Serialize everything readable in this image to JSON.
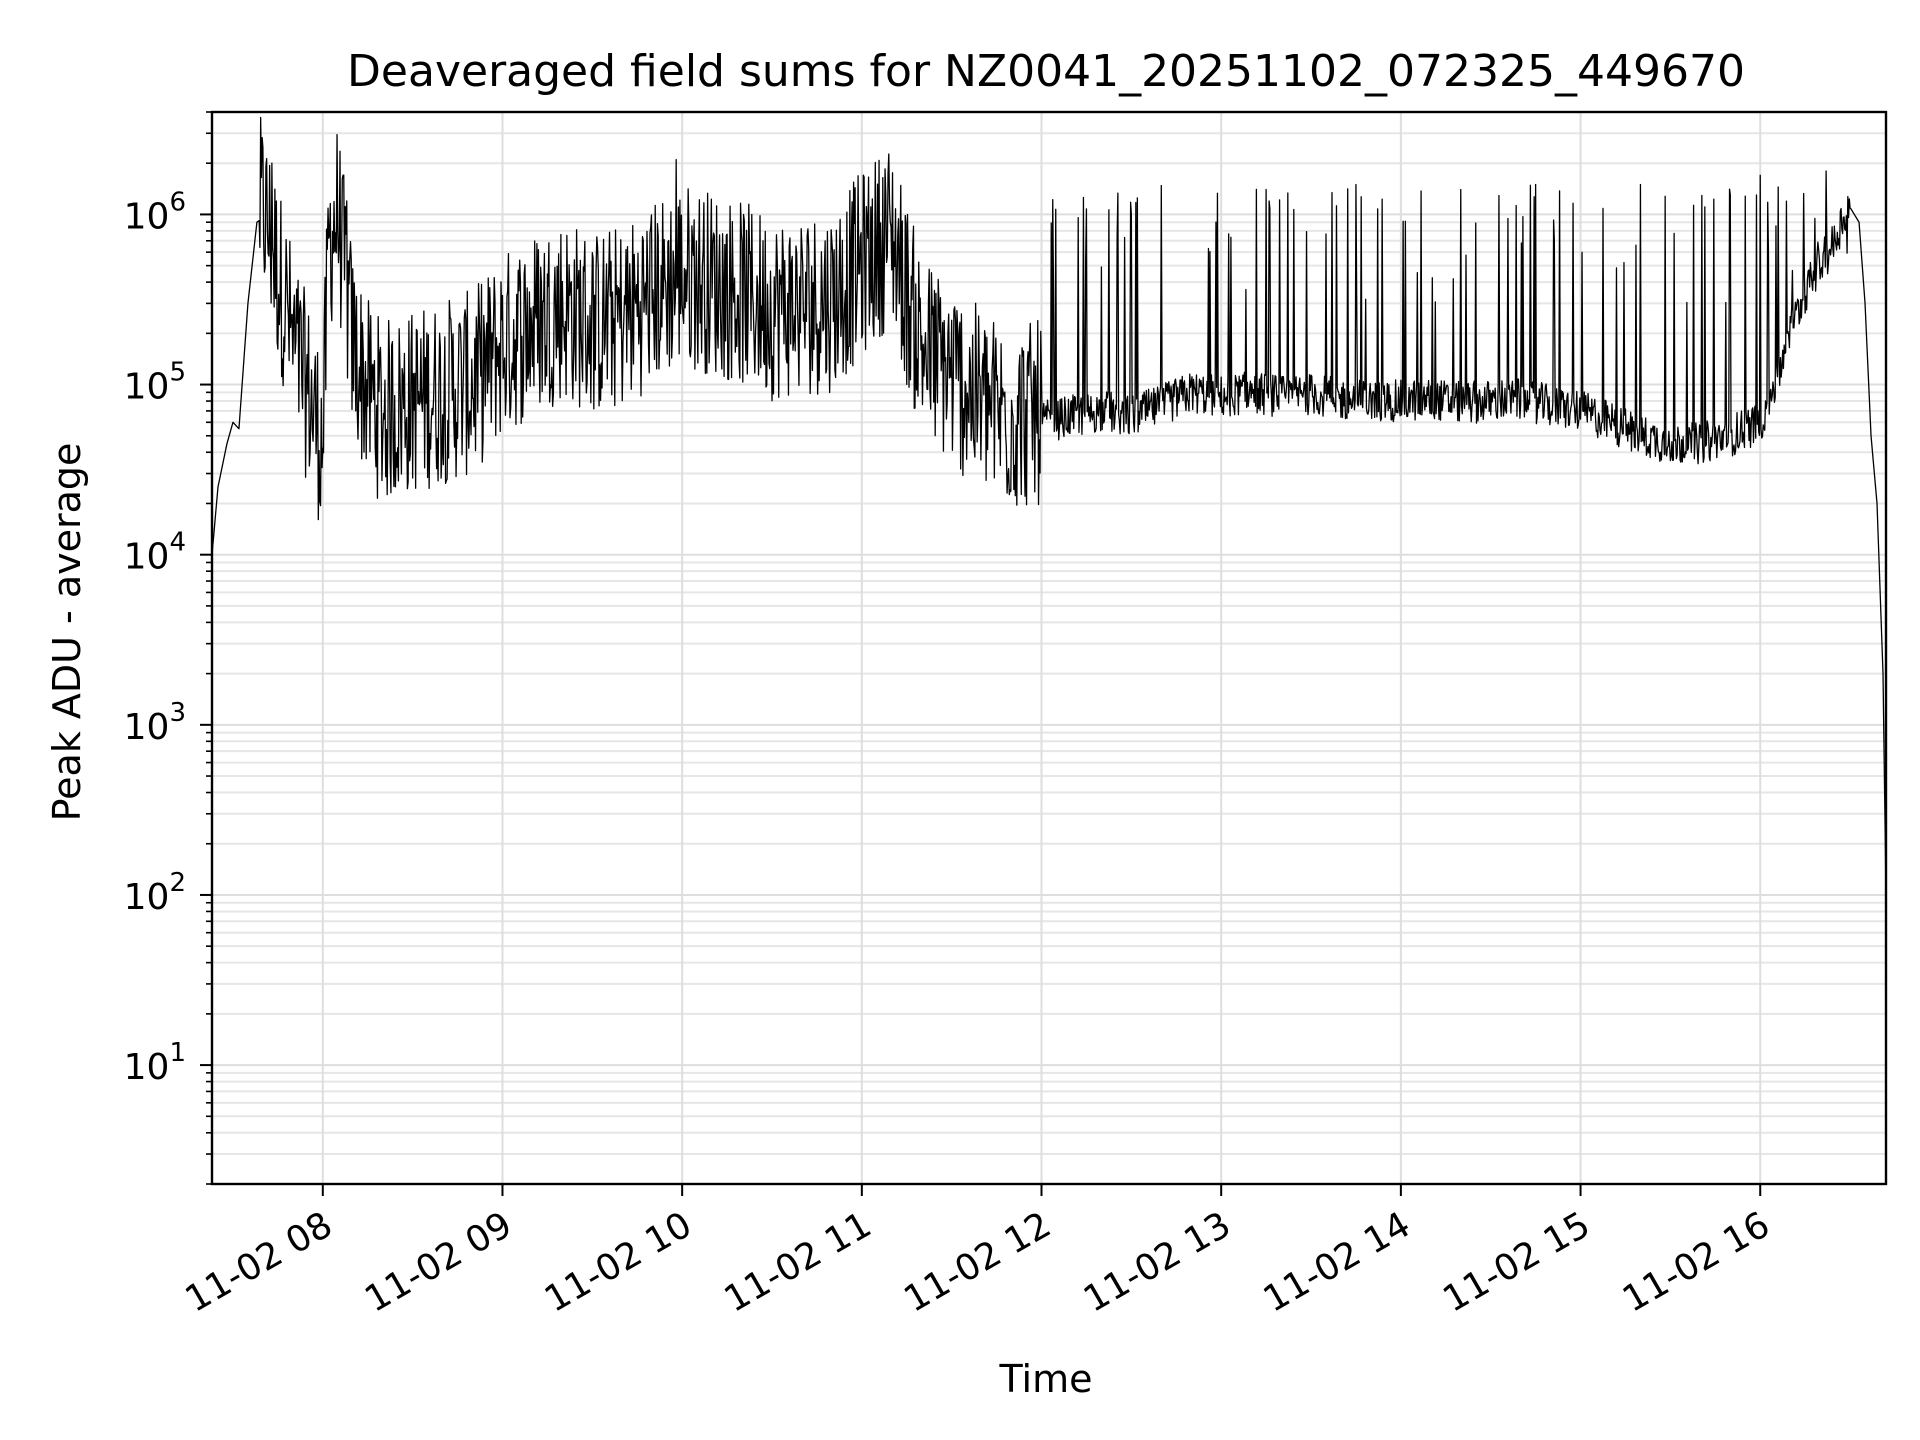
{
  "chart_data": {
    "type": "line",
    "title": "Deaveraged field sums for NZ0041_20251102_072325_449670",
    "xlabel": "Time",
    "ylabel": "Peak ADU - average",
    "yscale": "log",
    "ylim": [
      2,
      4000000
    ],
    "xlim": [
      "11-02 07:23",
      "11-02 16:42"
    ],
    "grid": true,
    "x_ticks": [
      {
        "value": "11-02 08:00",
        "label": "11-02 08"
      },
      {
        "value": "11-02 09:00",
        "label": "11-02 09"
      },
      {
        "value": "11-02 10:00",
        "label": "11-02 10"
      },
      {
        "value": "11-02 11:00",
        "label": "11-02 11"
      },
      {
        "value": "11-02 12:00",
        "label": "11-02 12"
      },
      {
        "value": "11-02 13:00",
        "label": "11-02 13"
      },
      {
        "value": "11-02 14:00",
        "label": "11-02 14"
      },
      {
        "value": "11-02 15:00",
        "label": "11-02 15"
      },
      {
        "value": "11-02 16:00",
        "label": "11-02 16"
      }
    ],
    "y_ticks": [
      {
        "value": 10,
        "base": "10",
        "exp": "1"
      },
      {
        "value": 100,
        "base": "10",
        "exp": "2"
      },
      {
        "value": 1000,
        "base": "10",
        "exp": "3"
      },
      {
        "value": 10000,
        "base": "10",
        "exp": "4"
      },
      {
        "value": 100000,
        "base": "10",
        "exp": "5"
      },
      {
        "value": 1000000,
        "base": "10",
        "exp": "6"
      }
    ],
    "series": [
      {
        "color": "#000000",
        "x": [
          "07:23",
          "07:25",
          "07:28",
          "07:30",
          "07:32",
          "07:35",
          "07:38",
          "07:40",
          "07:42",
          "07:45",
          "07:48",
          "07:50",
          "07:55",
          "08:00",
          "08:02",
          "08:05",
          "08:08",
          "08:10",
          "08:15",
          "08:20",
          "08:30",
          "08:40",
          "08:50",
          "09:00",
          "09:10",
          "09:20",
          "09:30",
          "09:40",
          "09:50",
          "10:00",
          "10:10",
          "10:20",
          "10:30",
          "10:40",
          "10:50",
          "11:00",
          "11:10",
          "11:15",
          "11:20",
          "11:30",
          "11:40",
          "11:50",
          "12:00",
          "12:10",
          "12:20",
          "12:30",
          "12:40",
          "12:50",
          "13:00",
          "13:10",
          "13:20",
          "13:30",
          "13:40",
          "13:50",
          "14:00",
          "14:10",
          "14:20",
          "14:30",
          "14:40",
          "14:50",
          "15:00",
          "15:10",
          "15:20",
          "15:30",
          "15:40",
          "15:50",
          "16:00",
          "16:05",
          "16:10",
          "16:15",
          "16:20",
          "16:25",
          "16:28",
          "16:30",
          "16:33",
          "16:35",
          "16:37",
          "16:39",
          "16:41",
          "16:42"
        ],
        "y": [
          10000,
          25000,
          45000,
          60000,
          55000,
          300000,
          900000,
          950000,
          700000,
          400000,
          250000,
          150000,
          80000,
          40000,
          600000,
          900000,
          300000,
          150000,
          80000,
          60000,
          70000,
          80000,
          90000,
          150000,
          200000,
          250000,
          200000,
          220000,
          300000,
          400000,
          350000,
          300000,
          250000,
          260000,
          280000,
          450000,
          700000,
          300000,
          150000,
          100000,
          70000,
          55000,
          60000,
          65000,
          70000,
          65000,
          75000,
          90000,
          85000,
          90000,
          85000,
          88000,
          82000,
          80000,
          80000,
          82000,
          78000,
          80000,
          82000,
          75000,
          70000,
          60000,
          50000,
          45000,
          45000,
          50000,
          60000,
          100000,
          200000,
          350000,
          500000,
          700000,
          1000000,
          1100000,
          900000,
          300000,
          50000,
          20000,
          2000,
          100
        ]
      }
    ],
    "spikes_top": [
      {
        "x": "07:43",
        "y": 2000000
      },
      {
        "x": "08:08",
        "y": 1200000
      },
      {
        "x": "09:58",
        "y": 2100000
      },
      {
        "x": "11:08",
        "y": 1300000
      },
      {
        "x": "12:30",
        "y": 1000000
      },
      {
        "x": "13:15",
        "y": 1400000
      },
      {
        "x": "13:45",
        "y": 1500000
      },
      {
        "x": "14:20",
        "y": 1400000
      },
      {
        "x": "14:45",
        "y": 1500000
      },
      {
        "x": "15:20",
        "y": 1500000
      },
      {
        "x": "16:00",
        "y": 1700000
      },
      {
        "x": "16:22",
        "y": 1800000
      }
    ]
  }
}
